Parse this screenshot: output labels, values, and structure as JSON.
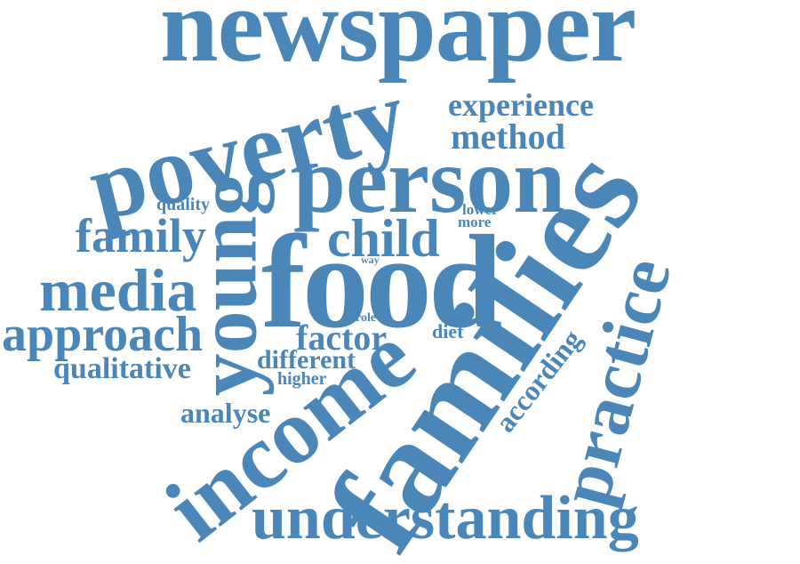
{
  "colors": {
    "word": "#4a86b8",
    "background": "#ffffff"
  },
  "words": {
    "newspaper": "newspaper",
    "poverty": "poverty",
    "experience": "experience",
    "method": "method",
    "person": "person",
    "young": "young",
    "families": "families",
    "quality": "quality",
    "lower": "lower",
    "more": "more",
    "family": "family",
    "child": "child",
    "way": "way",
    "food": "food",
    "media": "media",
    "practice": "practice",
    "approach": "approach",
    "role": "role",
    "factor": "factor",
    "diet": "diet",
    "income": "income",
    "different": "different",
    "qualitative": "qualitative",
    "according": "according",
    "higher": "higher",
    "analyse": "analyse",
    "understanding": "understanding"
  }
}
